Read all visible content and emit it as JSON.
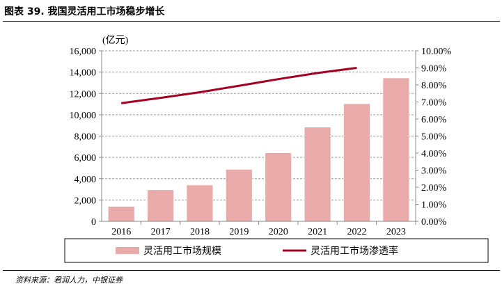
{
  "title": "图表 39. 我国灵活用工市场稳步增长",
  "source": "资料来源：君润人力，中银证券",
  "chart_data": {
    "type": "bar+line",
    "categories": [
      "2016",
      "2017",
      "2018",
      "2019",
      "2020",
      "2021",
      "2022",
      "2023"
    ],
    "y_left_unit": "(亿元)",
    "y_left_range": [
      0,
      16000
    ],
    "y_left_ticks": [
      "0",
      "2,000",
      "4,000",
      "6,000",
      "8,000",
      "10,000",
      "12,000",
      "14,000",
      "16,000"
    ],
    "y_right_range": [
      0,
      10
    ],
    "y_right_ticks": [
      "0.00%",
      "1.00%",
      "2.00%",
      "3.00%",
      "4.00%",
      "5.00%",
      "6.00%",
      "7.00%",
      "8.00%",
      "9.00%",
      "10.00%"
    ],
    "grid": true,
    "legend_placement": "bottom",
    "series": [
      {
        "name": "灵活用工市场规模",
        "type": "bar",
        "axis": "left",
        "color": "#e9aaaa",
        "values": [
          1400,
          2950,
          3400,
          4870,
          6420,
          8840,
          11030,
          13450
        ]
      },
      {
        "name": "灵活用工市场渗透率",
        "type": "line",
        "axis": "right",
        "color": "#a50021",
        "values": [
          6.93,
          7.24,
          7.57,
          7.95,
          8.34,
          8.7,
          9.0,
          null
        ]
      }
    ]
  }
}
